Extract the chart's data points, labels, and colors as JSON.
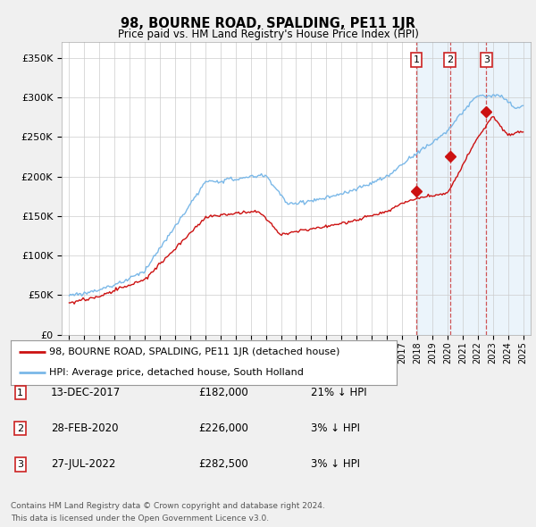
{
  "title": "98, BOURNE ROAD, SPALDING, PE11 1JR",
  "subtitle": "Price paid vs. HM Land Registry's House Price Index (HPI)",
  "legend_line1": "98, BOURNE ROAD, SPALDING, PE11 1JR (detached house)",
  "legend_line2": "HPI: Average price, detached house, South Holland",
  "footer1": "Contains HM Land Registry data © Crown copyright and database right 2024.",
  "footer2": "This data is licensed under the Open Government Licence v3.0.",
  "transactions": [
    {
      "num": 1,
      "date": "13-DEC-2017",
      "price": "£182,000",
      "pct": "21% ↓ HPI",
      "year": 2017.95
    },
    {
      "num": 2,
      "date": "28-FEB-2020",
      "price": "£226,000",
      "pct": "3% ↓ HPI",
      "year": 2020.17
    },
    {
      "num": 3,
      "date": "27-JUL-2022",
      "price": "£282,500",
      "pct": "3% ↓ HPI",
      "year": 2022.57
    }
  ],
  "transaction_values": [
    182000,
    226000,
    282500
  ],
  "hpi_color": "#7ab8e8",
  "price_color": "#cc1111",
  "dashed_color": "#cc4444",
  "bg_color": "#f0f0f0",
  "plot_bg": "#ffffff",
  "grid_color": "#cccccc",
  "shade_color": "#ddeeff",
  "ylim": [
    0,
    370000
  ],
  "yticks": [
    0,
    50000,
    100000,
    150000,
    200000,
    250000,
    300000,
    350000
  ],
  "xmin": 1994.5,
  "xmax": 2025.5,
  "shade_start": 2017.95,
  "shade_end": 2025.5
}
